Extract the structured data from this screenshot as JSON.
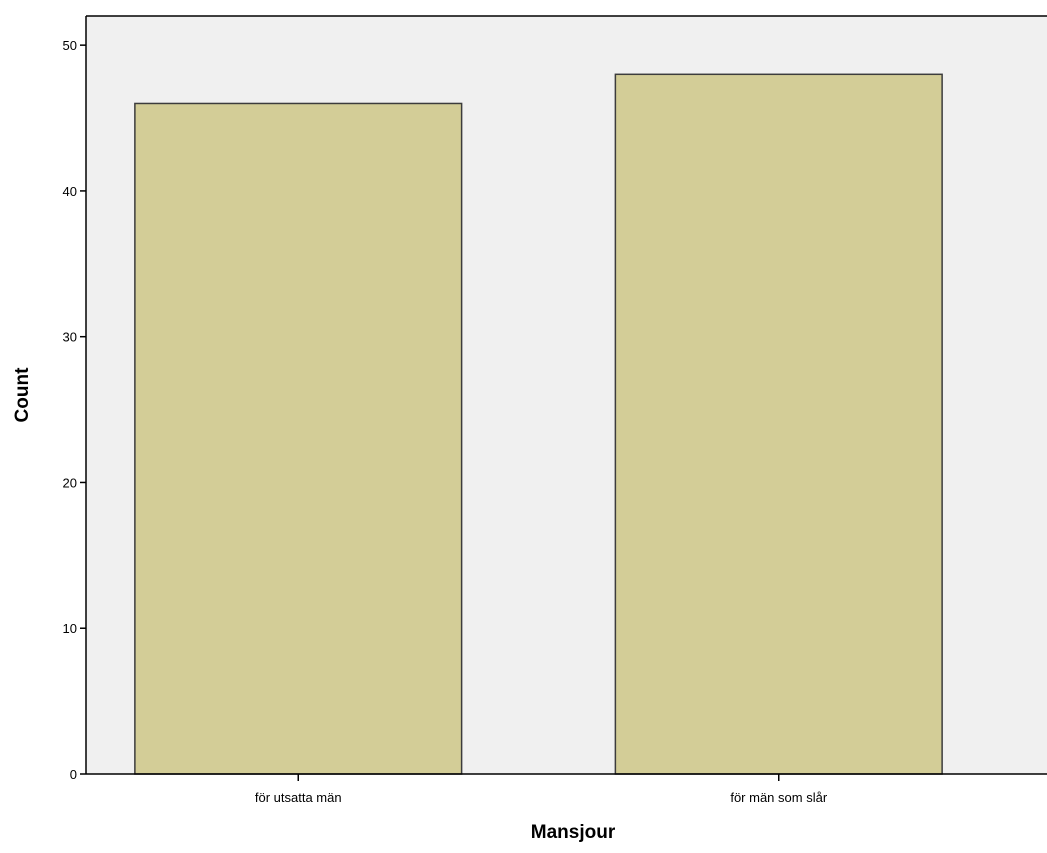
{
  "chart_data": {
    "type": "bar",
    "title": "",
    "xlabel": "Mansjour",
    "ylabel": "Count",
    "categories": [
      "för utsatta män",
      "för män som slår"
    ],
    "values": [
      46,
      48
    ],
    "ylim": [
      0,
      52
    ],
    "yticks": [
      0,
      10,
      20,
      30,
      40,
      50
    ],
    "grid": false,
    "legend": "none",
    "colors": {
      "bar_fill": "#d3cd97",
      "bar_stroke": "#3c3c3c",
      "plot_background": "#f0f0f0",
      "axis": "#000000"
    }
  }
}
